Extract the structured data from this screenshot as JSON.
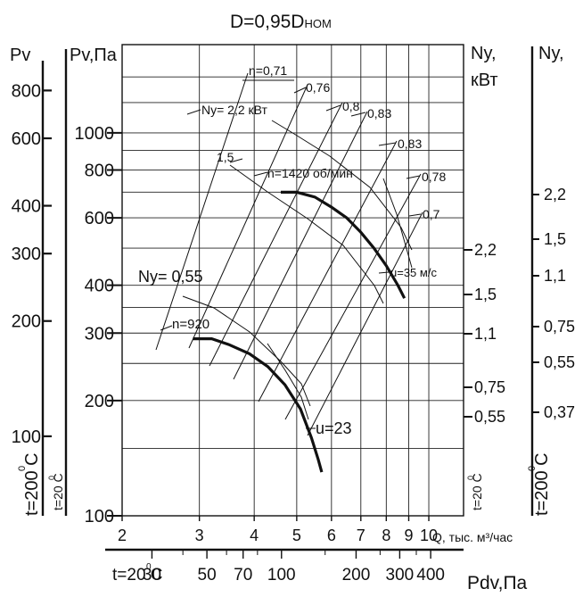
{
  "chart_data": {
    "type": "line",
    "title": "D=0,95D",
    "title_sub": "НОМ",
    "xlabel": "Q, тыс. м³/час",
    "x_log": true,
    "xlim": [
      2,
      12
    ],
    "x_ticks": [
      "2",
      "3",
      "4",
      "5",
      "6",
      "7",
      "8",
      "9",
      "10"
    ],
    "ylabel": "Pv,Па",
    "y_log": true,
    "ylim": [
      100,
      1700
    ],
    "y_ticks": [
      "100",
      "200",
      "300",
      "400",
      "600",
      "800",
      "1000"
    ],
    "left_outer_axis": {
      "label": "Pv",
      "ticks": [
        "100",
        "200",
        "300",
        "400",
        "600",
        "800"
      ],
      "temp_label": "t=200 C",
      "temp_sup": "0"
    },
    "left_inner_temp": {
      "label": "t=20 C",
      "sup": "0"
    },
    "right_inner_axis": {
      "label": "Ny,",
      "label2": "кВт",
      "ticks": [
        "0,55",
        "0,75",
        "1,1",
        "1,5",
        "2,2"
      ],
      "temp_label": "t=20 C",
      "temp_sup": "0"
    },
    "right_outer_axis": {
      "label": "Ny,",
      "ticks": [
        "0,37",
        "0,55",
        "0,75",
        "1,1",
        "1,5",
        "2,2"
      ],
      "temp_label": "t=200 C",
      "temp_sup": "0"
    },
    "bottom_dynamic_axis": {
      "label": "Pdv,Па",
      "temp_label": "t=20 C",
      "temp_sup": "0",
      "ticks": [
        "30",
        "50",
        "70",
        "100",
        "200",
        "300",
        "400"
      ]
    },
    "series": [
      {
        "name": "n=1420 об/мин",
        "points": [
          [
            4.6,
            700
          ],
          [
            5.0,
            700
          ],
          [
            5.5,
            680
          ],
          [
            6.0,
            640
          ],
          [
            6.5,
            600
          ],
          [
            7.0,
            550
          ],
          [
            7.5,
            500
          ],
          [
            8.0,
            450
          ],
          [
            8.5,
            400
          ],
          [
            8.8,
            370
          ]
        ]
      },
      {
        "name": "n=920",
        "points": [
          [
            2.9,
            290
          ],
          [
            3.2,
            290
          ],
          [
            3.5,
            280
          ],
          [
            3.9,
            265
          ],
          [
            4.3,
            245
          ],
          [
            4.7,
            220
          ],
          [
            5.1,
            190
          ],
          [
            5.4,
            160
          ],
          [
            5.6,
            140
          ],
          [
            5.7,
            130
          ]
        ]
      }
    ],
    "power_lines": [
      {
        "label": "Ny= 2,2 кВт"
      },
      {
        "label": "1,5"
      },
      {
        "label": "Ny= 0,55"
      }
    ],
    "efficiency_labels": [
      "η=0,71",
      "0,76",
      "0,8",
      "0,83",
      "0,83",
      "0,78",
      "0,7"
    ],
    "speed_labels": [
      "u=35 м/с",
      "u=23"
    ]
  }
}
